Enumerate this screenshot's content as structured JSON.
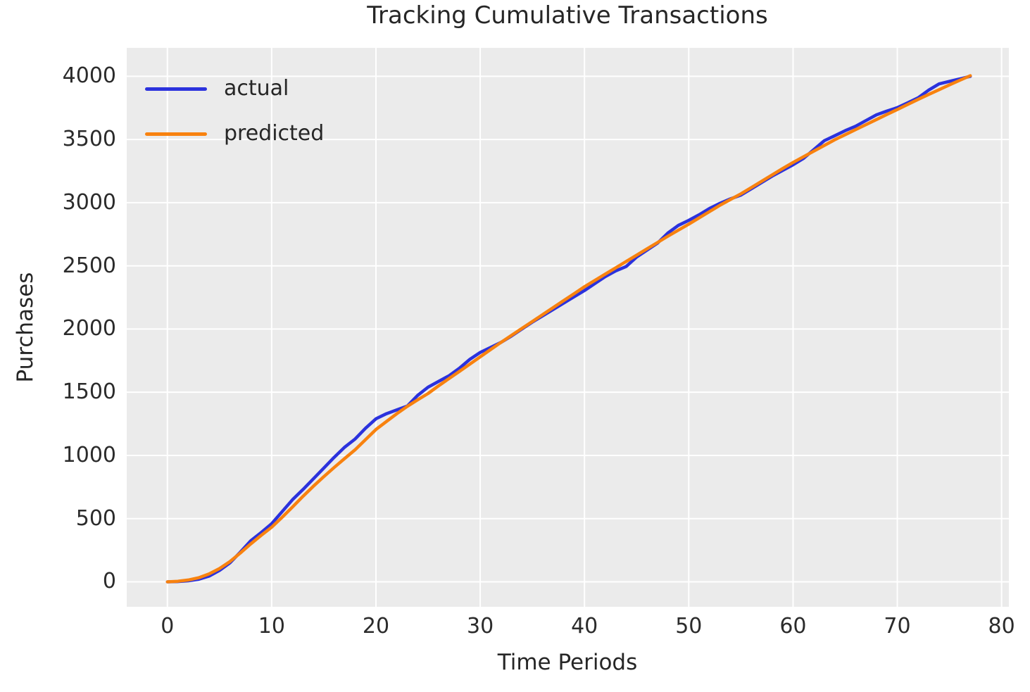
{
  "chart_data": {
    "type": "line",
    "title": "Tracking Cumulative Transactions",
    "xlabel": "Time Periods",
    "ylabel": "Purchases",
    "xlim": [
      -3.9,
      80.7
    ],
    "ylim": [
      -198,
      4225
    ],
    "xticks": [
      0,
      10,
      20,
      30,
      40,
      50,
      60,
      70,
      80
    ],
    "yticks": [
      0,
      500,
      1000,
      1500,
      2000,
      2500,
      3000,
      3500,
      4000
    ],
    "grid": true,
    "legend_position": "upper-left",
    "plot_background": "#ebebeb",
    "gridline_color": "#ffffff",
    "text_color": "#262626",
    "x": [
      0,
      1,
      2,
      3,
      4,
      5,
      6,
      7,
      8,
      9,
      10,
      11,
      12,
      13,
      14,
      15,
      16,
      17,
      18,
      19,
      20,
      21,
      22,
      23,
      24,
      25,
      26,
      27,
      28,
      29,
      30,
      31,
      32,
      33,
      34,
      35,
      36,
      37,
      38,
      39,
      40,
      41,
      42,
      43,
      44,
      45,
      46,
      47,
      48,
      49,
      50,
      51,
      52,
      53,
      54,
      55,
      56,
      57,
      58,
      59,
      60,
      61,
      62,
      63,
      64,
      65,
      66,
      67,
      68,
      69,
      70,
      71,
      72,
      73,
      74,
      75,
      76,
      77
    ],
    "series": [
      {
        "name": "actual",
        "color": "#2b32dd",
        "values": [
          0,
          2,
          8,
          20,
          45,
          90,
          150,
          235,
          325,
          390,
          460,
          555,
          650,
          730,
          815,
          900,
          985,
          1065,
          1130,
          1215,
          1290,
          1330,
          1360,
          1390,
          1475,
          1540,
          1585,
          1630,
          1690,
          1760,
          1815,
          1855,
          1895,
          1945,
          2000,
          2055,
          2105,
          2155,
          2205,
          2255,
          2305,
          2360,
          2415,
          2460,
          2495,
          2570,
          2625,
          2680,
          2760,
          2820,
          2860,
          2905,
          2955,
          2995,
          3030,
          3060,
          3110,
          3160,
          3210,
          3255,
          3300,
          3350,
          3420,
          3490,
          3530,
          3570,
          3605,
          3650,
          3695,
          3725,
          3752,
          3790,
          3830,
          3890,
          3940,
          3960,
          3980,
          4000
        ]
      },
      {
        "name": "predicted",
        "color": "#f8820f",
        "values": [
          0,
          4,
          14,
          32,
          62,
          105,
          160,
          228,
          300,
          368,
          432,
          510,
          592,
          676,
          756,
          832,
          905,
          975,
          1045,
          1125,
          1205,
          1268,
          1330,
          1388,
          1440,
          1490,
          1550,
          1608,
          1665,
          1722,
          1780,
          1838,
          1895,
          1950,
          2005,
          2060,
          2115,
          2170,
          2225,
          2280,
          2335,
          2385,
          2435,
          2485,
          2535,
          2585,
          2635,
          2685,
          2735,
          2783,
          2830,
          2880,
          2930,
          2980,
          3025,
          3070,
          3120,
          3170,
          3220,
          3270,
          3318,
          3363,
          3408,
          3453,
          3498,
          3538,
          3578,
          3618,
          3658,
          3698,
          3737,
          3777,
          3817,
          3856,
          3894,
          3932,
          3969,
          4005
        ]
      }
    ]
  }
}
